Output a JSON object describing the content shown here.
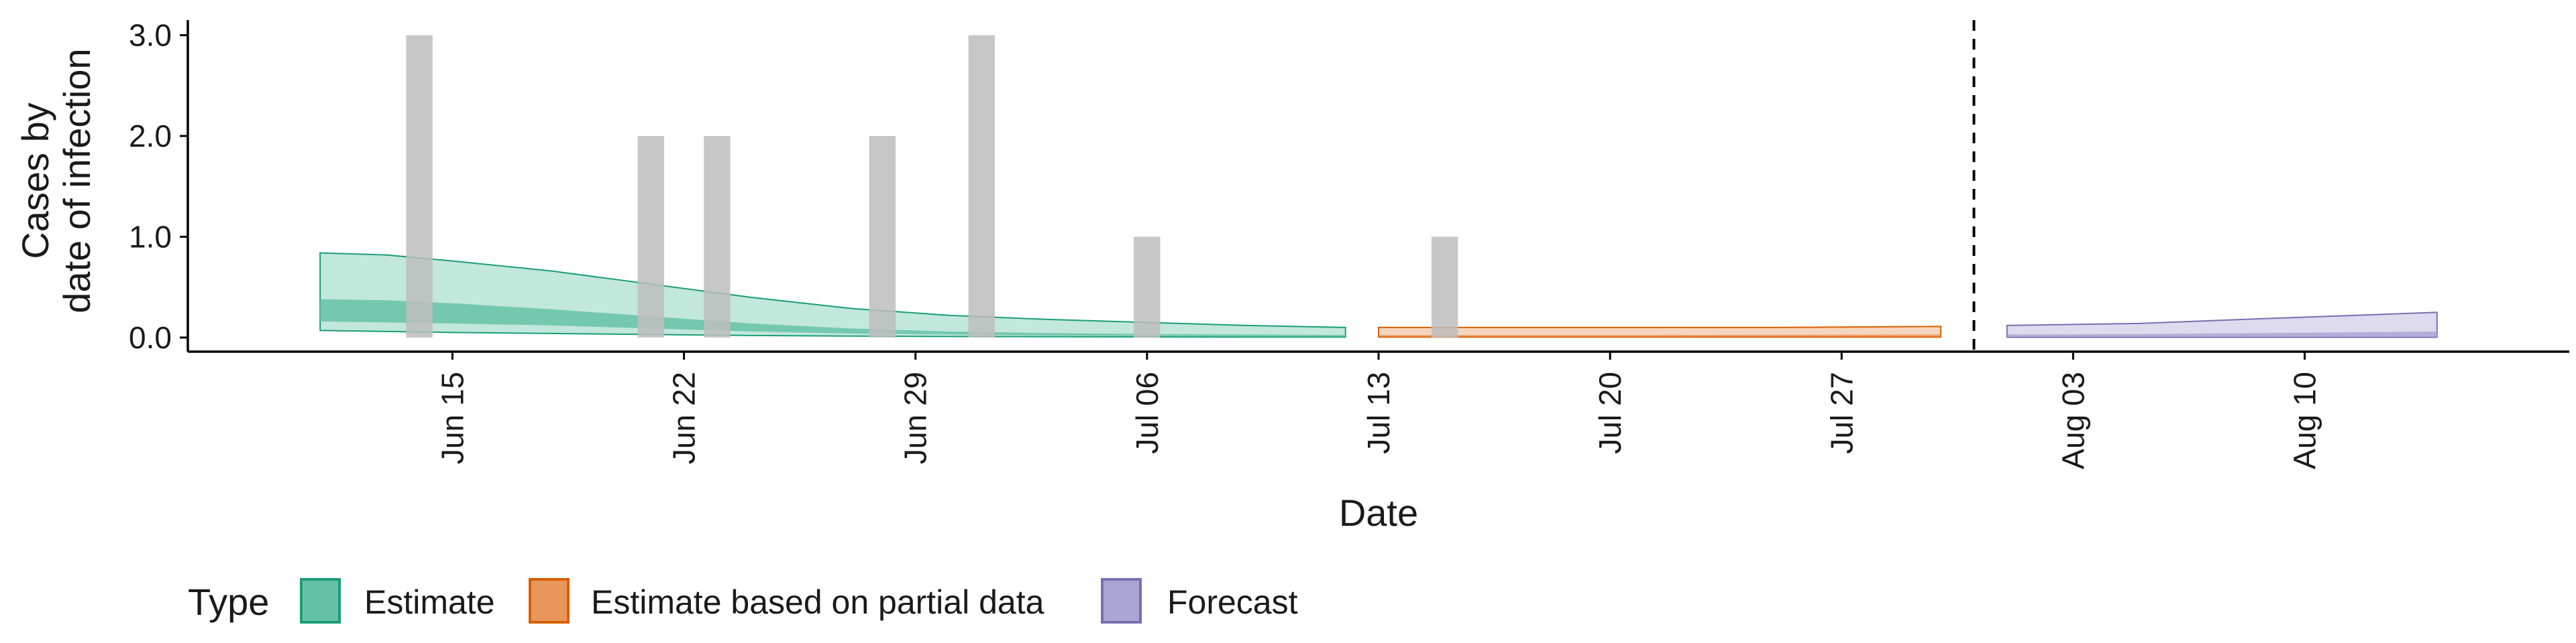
{
  "chart_data": {
    "type": "area",
    "xlabel": "Date",
    "ylabel_lines": [
      "Cases by",
      "date of infection"
    ],
    "x_range": [
      "2020-06-07",
      "2020-08-18"
    ],
    "ylim": [
      -0.14,
      3.15
    ],
    "y_ticks": [
      0.0,
      1.0,
      2.0,
      3.0
    ],
    "y_tick_labels": [
      "0.0",
      "1.0",
      "2.0",
      "3.0"
    ],
    "x_ticks": [
      "2020-06-15",
      "2020-06-22",
      "2020-06-29",
      "2020-07-06",
      "2020-07-13",
      "2020-07-20",
      "2020-07-27",
      "2020-08-03",
      "2020-08-10"
    ],
    "x_tick_labels": [
      "Jun 15",
      "Jun 22",
      "Jun 29",
      "Jul 06",
      "Jul 13",
      "Jul 20",
      "Jul 27",
      "Aug 03",
      "Aug 10"
    ],
    "grid": false,
    "vline_date": "2020-07-31",
    "legend": {
      "position": "bottom",
      "title": "Type",
      "items": [
        {
          "label": "Estimate",
          "fill": "#66c2a5",
          "stroke": "#1b9e77"
        },
        {
          "label": "Estimate based on partial data",
          "fill": "#e8965c",
          "stroke": "#d95f02"
        },
        {
          "label": "Forecast",
          "fill": "#a9a6d3",
          "stroke": "#7570b3"
        }
      ]
    },
    "bars": {
      "color": "#bdbdbd",
      "dates": [
        "2020-06-14",
        "2020-06-21",
        "2020-06-23",
        "2020-06-28",
        "2020-07-01",
        "2020-07-06",
        "2020-07-15"
      ],
      "values": [
        3,
        2,
        2,
        2,
        3,
        1,
        1
      ]
    },
    "series": [
      {
        "name": "Estimate",
        "fill": "#66c2a5",
        "stroke": "#1b9e77",
        "dates": [
          "2020-06-11",
          "2020-06-13",
          "2020-06-15",
          "2020-06-18",
          "2020-06-21",
          "2020-06-24",
          "2020-06-27",
          "2020-06-30",
          "2020-07-03",
          "2020-07-06",
          "2020-07-09",
          "2020-07-12"
        ],
        "outer_lo": [
          0.07,
          0.06,
          0.05,
          0.04,
          0.03,
          0.02,
          0.015,
          0.01,
          0.008,
          0.006,
          0.005,
          0.004
        ],
        "outer_hi": [
          0.84,
          0.82,
          0.76,
          0.66,
          0.53,
          0.4,
          0.29,
          0.22,
          0.18,
          0.15,
          0.12,
          0.1
        ],
        "inner_lo": [
          0.16,
          0.15,
          0.14,
          0.12,
          0.09,
          0.06,
          0.04,
          0.03,
          0.02,
          0.015,
          0.012,
          0.01
        ],
        "inner_hi": [
          0.38,
          0.37,
          0.34,
          0.28,
          0.21,
          0.14,
          0.09,
          0.06,
          0.045,
          0.035,
          0.03,
          0.025
        ]
      },
      {
        "name": "Estimate based on partial data",
        "fill": "#e8965c",
        "stroke": "#d95f02",
        "dates": [
          "2020-07-13",
          "2020-07-17",
          "2020-07-21",
          "2020-07-25",
          "2020-07-30"
        ],
        "outer_lo": [
          0.004,
          0.004,
          0.004,
          0.004,
          0.004
        ],
        "outer_hi": [
          0.1,
          0.1,
          0.1,
          0.1,
          0.11
        ],
        "inner_lo": [
          0.01,
          0.01,
          0.01,
          0.01,
          0.01
        ],
        "inner_hi": [
          0.025,
          0.025,
          0.025,
          0.027,
          0.03
        ]
      },
      {
        "name": "Forecast",
        "fill": "#a9a6d3",
        "stroke": "#7570b3",
        "dates": [
          "2020-08-01",
          "2020-08-05",
          "2020-08-09",
          "2020-08-14"
        ],
        "outer_lo": [
          0.003,
          0.003,
          0.003,
          0.003
        ],
        "outer_hi": [
          0.12,
          0.14,
          0.19,
          0.25
        ],
        "inner_lo": [
          0.006,
          0.006,
          0.006,
          0.006
        ],
        "inner_hi": [
          0.03,
          0.035,
          0.045,
          0.06
        ]
      }
    ]
  }
}
